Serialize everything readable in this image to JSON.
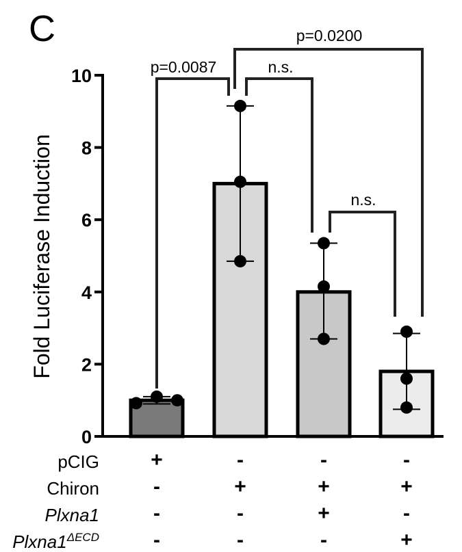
{
  "panel_label": "C",
  "chart_data": {
    "type": "bar",
    "ylabel": "Fold Luciferase Induction",
    "ylim": [
      0,
      10
    ],
    "yticks": [
      0,
      2,
      4,
      6,
      8,
      10
    ],
    "categories": [
      "1",
      "2",
      "3",
      "4"
    ],
    "values": [
      1.0,
      7.0,
      4.0,
      1.8
    ],
    "bar_colors": [
      "#7a7a7a",
      "#d8d8d8",
      "#c8c8c8",
      "#ececec"
    ],
    "error_bars": [
      {
        "low": 0.9,
        "high": 1.1
      },
      {
        "low": 4.85,
        "high": 9.15
      },
      {
        "low": 2.7,
        "high": 5.35
      },
      {
        "low": 0.75,
        "high": 2.85
      }
    ],
    "points": [
      [
        0.92,
        1.1,
        1.0
      ],
      [
        9.15,
        7.05,
        4.85
      ],
      [
        5.35,
        4.15,
        2.7
      ],
      [
        2.9,
        1.6,
        0.8
      ]
    ],
    "significance": [
      {
        "from": 0,
        "to": 1,
        "label": "p=0.0087"
      },
      {
        "from": 1,
        "to": 2,
        "label": "n.s."
      },
      {
        "from": 2,
        "to": 3,
        "label": "n.s."
      },
      {
        "from": 1,
        "to": 3,
        "label": "p=0.0200"
      }
    ],
    "conditions": [
      {
        "name": "pCIG",
        "italic": false,
        "sup": "",
        "values": [
          "+",
          "-",
          "-",
          "-"
        ]
      },
      {
        "name": "Chiron",
        "italic": false,
        "sup": "",
        "values": [
          "-",
          "+",
          "+",
          "+"
        ]
      },
      {
        "name": "Plxna1",
        "italic": true,
        "sup": "",
        "values": [
          "-",
          "-",
          "+",
          "-"
        ]
      },
      {
        "name": "Plxna1",
        "italic": true,
        "sup": "ΔECD",
        "values": [
          "-",
          "-",
          "-",
          "+"
        ]
      }
    ]
  }
}
